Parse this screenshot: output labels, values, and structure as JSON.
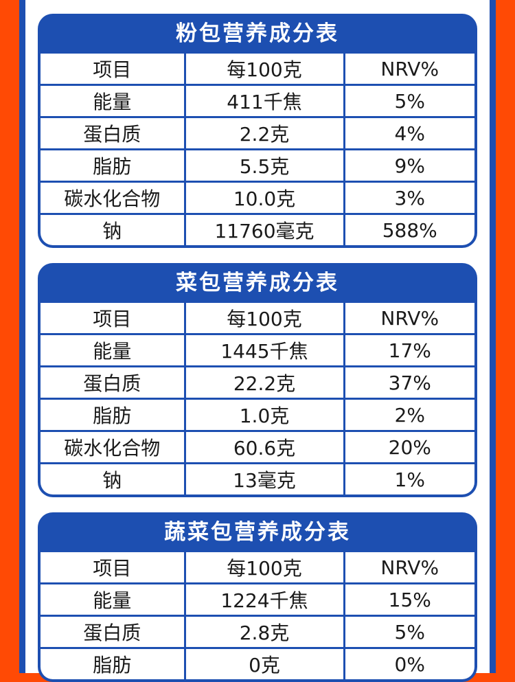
{
  "headers": [
    "项目",
    "每100克",
    "NRV%"
  ],
  "tables": [
    {
      "title": "粉包营养成分表",
      "rows": [
        [
          "能量",
          "411千焦",
          "5%"
        ],
        [
          "蛋白质",
          "2.2克",
          "4%"
        ],
        [
          "脂肪",
          "5.5克",
          "9%"
        ],
        [
          "碳水化合物",
          "10.0克",
          "3%"
        ],
        [
          "钠",
          "11760毫克",
          "588%"
        ]
      ]
    },
    {
      "title": "菜包营养成分表",
      "rows": [
        [
          "能量",
          "1445千焦",
          "17%"
        ],
        [
          "蛋白质",
          "22.2克",
          "37%"
        ],
        [
          "脂肪",
          "1.0克",
          "2%"
        ],
        [
          "碳水化合物",
          "60.6克",
          "20%"
        ],
        [
          "钠",
          "13毫克",
          "1%"
        ]
      ]
    },
    {
      "title": "蔬菜包营养成分表",
      "rows": [
        [
          "能量",
          "1224千焦",
          "15%"
        ],
        [
          "蛋白质",
          "2.8克",
          "5%"
        ],
        [
          "脂肪",
          "0克",
          "0%"
        ]
      ]
    }
  ],
  "colors": {
    "background": "#ff4a05",
    "accent": "#1d4fb1",
    "cell_bg": "#ffffff",
    "text": "#1a1a1a"
  }
}
